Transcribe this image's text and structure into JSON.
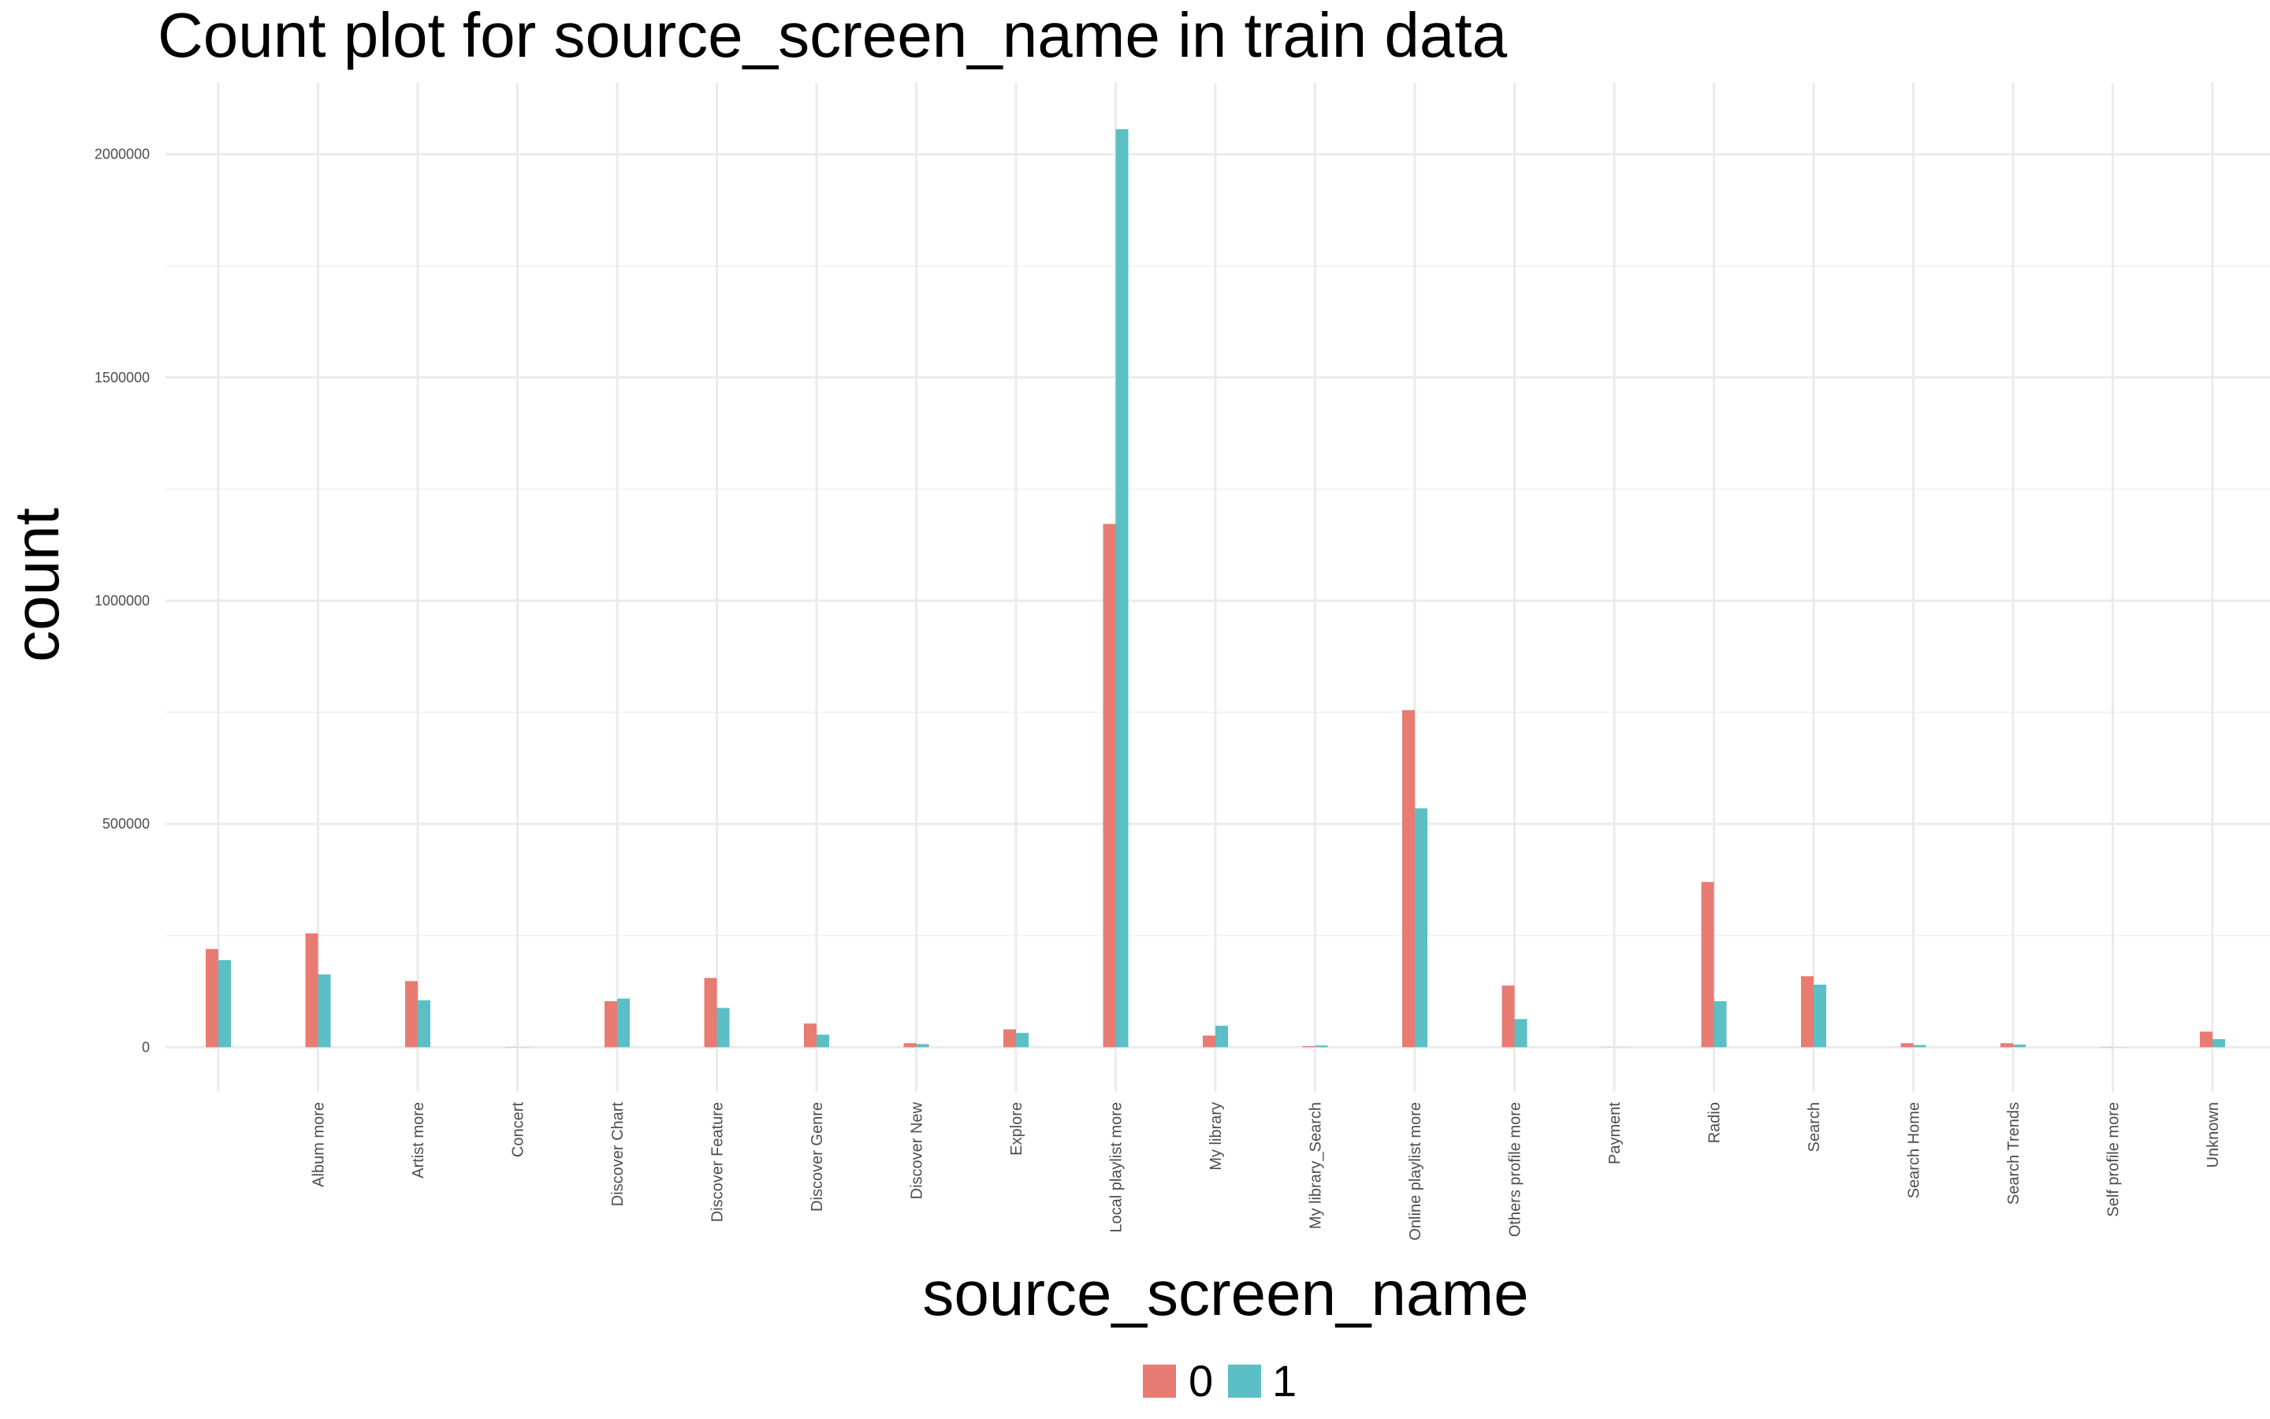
{
  "chart_data": {
    "type": "bar",
    "title": "Count plot for source_screen_name in train data",
    "xlabel": "source_screen_name",
    "ylabel": "count",
    "categories": [
      "",
      "Album more",
      "Artist more",
      "Concert",
      "Discover Chart",
      "Discover Feature",
      "Discover Genre",
      "Discover New",
      "Explore",
      "Local playlist more",
      "My library",
      "My library_Search",
      "Online playlist more",
      "Others profile more",
      "Payment",
      "Radio",
      "Search",
      "Search Home",
      "Search Trends",
      "Self profile more",
      "Unknown"
    ],
    "series": [
      {
        "name": "0",
        "color": "#e87b72",
        "values": [
          220000,
          255000,
          148000,
          500,
          103000,
          155000,
          53000,
          9000,
          40000,
          1172000,
          26000,
          2500,
          755000,
          138000,
          300,
          370000,
          159000,
          9000,
          9000,
          500,
          35000
        ]
      },
      {
        "name": "1",
        "color": "#5bbfc5",
        "values": [
          195000,
          163000,
          105000,
          400,
          109000,
          88000,
          28000,
          7000,
          32000,
          2056000,
          48000,
          4000,
          535000,
          63000,
          200,
          103000,
          140000,
          5000,
          6000,
          300,
          18000
        ]
      }
    ],
    "ylim": [
      -100000,
      2160000
    ],
    "yticks": [
      0,
      500000,
      1000000,
      1500000,
      2000000
    ],
    "ytick_labels": [
      "0",
      "500000",
      "1000000",
      "1500000",
      "2000000"
    ],
    "grid": true,
    "legend_position": "bottom"
  },
  "legend": {
    "items": [
      {
        "label": "0",
        "color": "#e87b72"
      },
      {
        "label": "1",
        "color": "#5bbfc5"
      }
    ]
  }
}
